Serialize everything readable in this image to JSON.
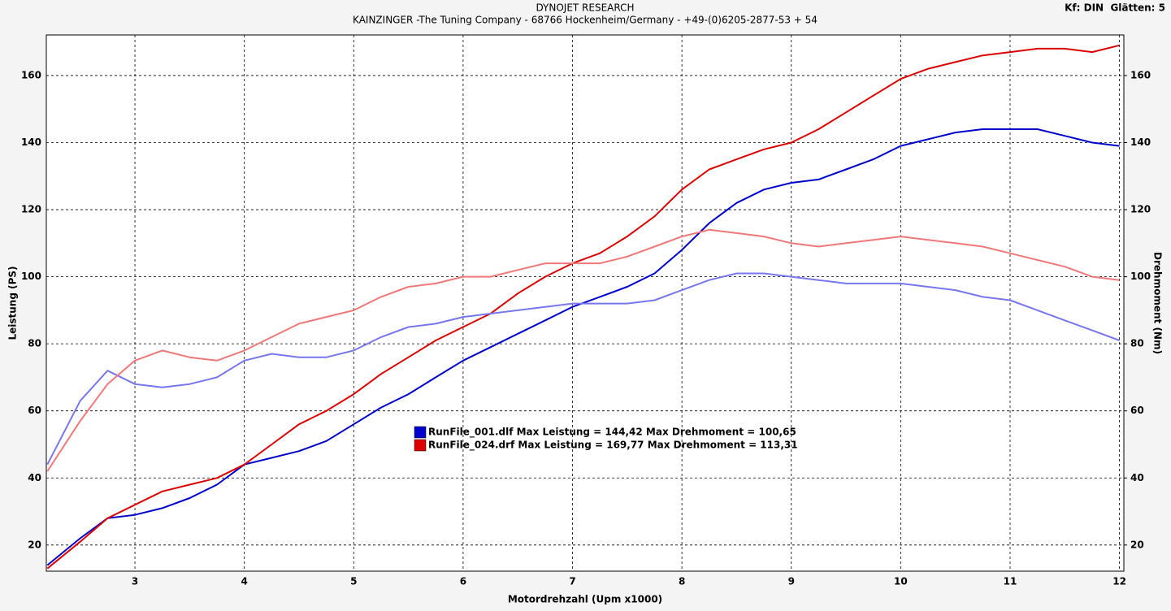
{
  "chart_data": {
    "type": "line",
    "title": "DYNOJET RESEARCH",
    "subtitle": "KAINZINGER -The Tuning Company - 68766 Hockenheim/Germany - +49-(0)6205-2877-53 + 54",
    "settings_label": "Kf: DIN  Glätten: 5",
    "x_label": "Motordrehzahl (Upm x1000)",
    "y_label": "Leistung (PS)",
    "y2_label": "Drehmoment (Nm)",
    "x": [
      2.2,
      2.5,
      2.75,
      3.0,
      3.25,
      3.5,
      3.75,
      4.0,
      4.25,
      4.5,
      4.75,
      5.0,
      5.25,
      5.5,
      5.75,
      6.0,
      6.25,
      6.5,
      6.75,
      7.0,
      7.25,
      7.5,
      7.75,
      8.0,
      8.25,
      8.5,
      8.75,
      9.0,
      9.25,
      9.5,
      9.75,
      10.0,
      10.25,
      10.5,
      10.75,
      11.0,
      11.25,
      11.5,
      11.75,
      12.0
    ],
    "series": [
      {
        "color": "#0000cc",
        "values": [
          14,
          22,
          28,
          29,
          31,
          34,
          38,
          44,
          46,
          48,
          51,
          56,
          61,
          65,
          70,
          75,
          79,
          83,
          87,
          91,
          94,
          97,
          101,
          108,
          116,
          122,
          126,
          128,
          129,
          132,
          135,
          139,
          141,
          143,
          144,
          144,
          144,
          142,
          140,
          139
        ]
      },
      {
        "color": "#dd0000",
        "values": [
          13,
          21,
          28,
          32,
          36,
          38,
          40,
          44,
          50,
          56,
          60,
          65,
          71,
          76,
          81,
          85,
          89,
          95,
          100,
          104,
          107,
          112,
          118,
          126,
          132,
          135,
          138,
          140,
          144,
          149,
          154,
          159,
          162,
          164,
          166,
          167,
          168,
          168,
          167,
          169
        ]
      },
      {
        "color": "#7777ee",
        "axis": "y2",
        "values": [
          44,
          63,
          72,
          68,
          67,
          68,
          70,
          75,
          77,
          76,
          76,
          78,
          82,
          85,
          86,
          88,
          89,
          90,
          91,
          92,
          92,
          92,
          93,
          96,
          99,
          101,
          101,
          100,
          99,
          98,
          98,
          98,
          97,
          96,
          94,
          93,
          90,
          87,
          84,
          81
        ]
      },
      {
        "color": "#f07878",
        "axis": "y2",
        "values": [
          42,
          57,
          68,
          75,
          78,
          76,
          75,
          78,
          82,
          86,
          88,
          90,
          94,
          97,
          98,
          100,
          100,
          102,
          104,
          104,
          104,
          106,
          109,
          112,
          114,
          113,
          112,
          110,
          109,
          110,
          111,
          112,
          111,
          110,
          109,
          107,
          105,
          103,
          100,
          99
        ]
      }
    ],
    "legend": [
      {
        "text": "RunFile_001.dlf Max Leistung = 144,42 Max Drehmoment = 100,65",
        "color": "#0000cc"
      },
      {
        "text": "RunFile_024.drf Max Leistung = 169,77 Max Drehmoment = 113,31",
        "color": "#dd0000"
      }
    ],
    "xlim": [
      2.19,
      12.04
    ],
    "xticks": [
      3,
      4,
      5,
      6,
      7,
      8,
      9,
      10,
      11,
      12
    ],
    "ylim": [
      12.2,
      172.1
    ],
    "yticks": [
      20,
      40,
      60,
      80,
      100,
      120,
      140,
      160
    ],
    "y2lim": [
      12.2,
      172.1
    ],
    "y2ticks": [
      20,
      40,
      60,
      80,
      100,
      120,
      140,
      160
    ],
    "grid": true
  }
}
